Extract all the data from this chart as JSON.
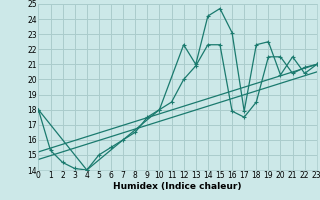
{
  "background_color": "#cce8e8",
  "grid_color": "#aacccc",
  "line_color": "#1a7a6e",
  "xlabel": "Humidex (Indice chaleur)",
  "xlim": [
    0,
    23
  ],
  "ylim": [
    14,
    25
  ],
  "xticks": [
    0,
    1,
    2,
    3,
    4,
    5,
    6,
    7,
    8,
    9,
    10,
    11,
    12,
    13,
    14,
    15,
    16,
    17,
    18,
    19,
    20,
    21,
    22,
    23
  ],
  "yticks": [
    14,
    15,
    16,
    17,
    18,
    19,
    20,
    21,
    22,
    23,
    24,
    25
  ],
  "series_main_x": [
    0,
    1,
    2,
    3,
    4,
    5,
    6,
    7,
    8,
    9,
    10,
    11,
    12,
    13,
    14,
    15,
    16,
    17,
    18,
    19,
    20,
    21,
    22,
    23
  ],
  "series_main_y": [
    18.0,
    15.3,
    14.5,
    14.1,
    14.0,
    15.0,
    15.5,
    16.0,
    16.5,
    17.5,
    18.0,
    18.5,
    20.0,
    20.9,
    22.3,
    22.3,
    17.9,
    17.5,
    18.5,
    21.5,
    21.5,
    20.4,
    20.8,
    21.0
  ],
  "series_peak_x": [
    0,
    4,
    10,
    12,
    13,
    14,
    15,
    16,
    17,
    18,
    19,
    20,
    21,
    22,
    23
  ],
  "series_peak_y": [
    18.0,
    14.0,
    18.0,
    22.3,
    21.0,
    24.2,
    24.7,
    23.1,
    17.9,
    22.3,
    22.5,
    20.3,
    21.5,
    20.4,
    21.0
  ],
  "line1_x": [
    0,
    23
  ],
  "line1_y": [
    15.2,
    21.0
  ],
  "line2_x": [
    0,
    23
  ],
  "line2_y": [
    14.7,
    20.5
  ]
}
